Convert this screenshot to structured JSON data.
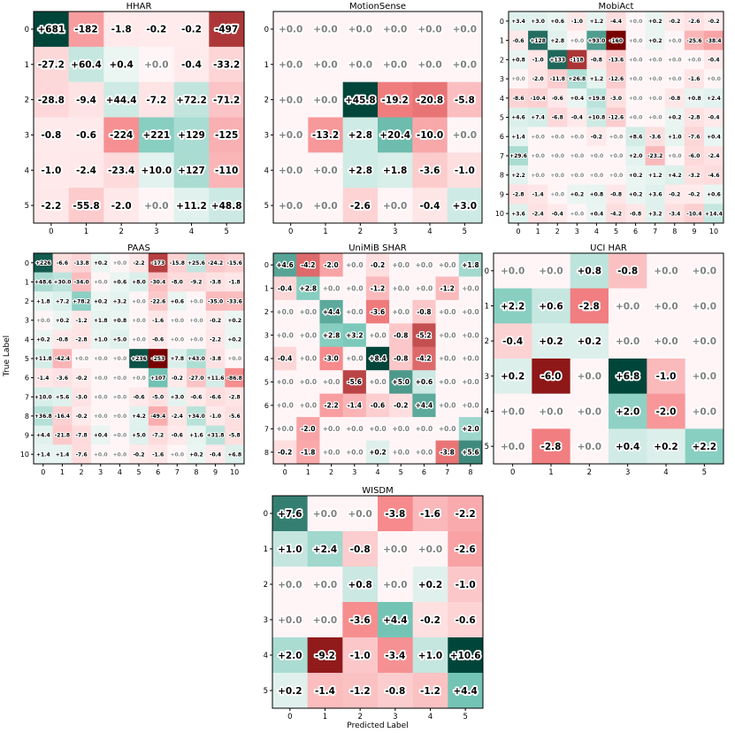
{
  "figure": {
    "xlabel": "Predicted Label",
    "ylabel": "True Label"
  },
  "chart_data": [
    {
      "type": "heatmap",
      "title": "HHAR",
      "xlabel": "",
      "ylabel": "",
      "categories": [
        "0",
        "1",
        "2",
        "3",
        "4",
        "5"
      ],
      "values": [
        [
          "+681",
          "-182",
          "-1.8",
          "-0.2",
          "-0.2",
          "-497"
        ],
        [
          "-27.2",
          "+60.4",
          "+0.4",
          "+0.0",
          "-0.4",
          "-33.2"
        ],
        [
          "-28.8",
          "-9.4",
          "+44.4",
          "-7.2",
          "+72.2",
          "-71.2"
        ],
        [
          "-0.8",
          "-0.6",
          "-224",
          "+221",
          "+129",
          "-125"
        ],
        [
          "-1.0",
          "-2.4",
          "-23.4",
          "+10.0",
          "+127",
          "-110"
        ],
        [
          "-2.2",
          "-55.8",
          "-2.0",
          "+0.0",
          "+11.2",
          "+48.8"
        ]
      ]
    },
    {
      "type": "heatmap",
      "title": "MotionSense",
      "xlabel": "",
      "ylabel": "",
      "categories": [
        "0",
        "1",
        "2",
        "3",
        "4",
        "5"
      ],
      "values": [
        [
          "+0.0",
          "+0.0",
          "+0.0",
          "+0.0",
          "+0.0",
          "+0.0"
        ],
        [
          "+0.0",
          "+0.0",
          "+0.0",
          "+0.0",
          "+0.0",
          "+0.0"
        ],
        [
          "+0.0",
          "+0.0",
          "+45.8",
          "-19.2",
          "-20.8",
          "-5.8"
        ],
        [
          "+0.0",
          "-13.2",
          "+2.8",
          "+20.4",
          "-10.0",
          "+0.0"
        ],
        [
          "+0.0",
          "+0.0",
          "+2.8",
          "+1.8",
          "-3.6",
          "-1.0"
        ],
        [
          "+0.0",
          "+0.0",
          "-2.6",
          "+0.0",
          "-0.4",
          "+3.0"
        ]
      ]
    },
    {
      "type": "heatmap",
      "title": "MobiAct",
      "xlabel": "",
      "ylabel": "",
      "categories": [
        "0",
        "1",
        "2",
        "3",
        "4",
        "5",
        "6",
        "7",
        "8",
        "9",
        "10"
      ],
      "values": [
        [
          "+3.4",
          "+3.0",
          "+0.6",
          "-1.0",
          "+1.2",
          "-4.4",
          "+0.0",
          "+0.2",
          "-0.2",
          "-2.6",
          "-0.2"
        ],
        [
          "-0.6",
          "+128",
          "+2.8",
          "+0.0",
          "+93.0",
          "-160",
          "+0.0",
          "+0.2",
          "+0.0",
          "-25.6",
          "-38.4"
        ],
        [
          "+0.8",
          "-1.0",
          "+133",
          "-118",
          "-0.8",
          "-13.6",
          "+0.0",
          "+0.0",
          "+0.0",
          "+0.0",
          "-0.4"
        ],
        [
          "+0.0",
          "-2.0",
          "-11.8",
          "+26.8",
          "+1.2",
          "-12.6",
          "+0.0",
          "+0.0",
          "+0.0",
          "-1.6",
          "+0.0"
        ],
        [
          "-8.6",
          "-10.4",
          "-0.6",
          "+0.4",
          "+19.8",
          "-3.0",
          "+0.0",
          "+0.0",
          "-0.8",
          "+0.8",
          "+2.4"
        ],
        [
          "+4.6",
          "+7.4",
          "-6.8",
          "-0.4",
          "+10.8",
          "-12.6",
          "+0.0",
          "+0.0",
          "+0.2",
          "-2.8",
          "-0.4"
        ],
        [
          "+1.4",
          "+0.0",
          "+0.0",
          "+0.0",
          "-0.2",
          "+0.0",
          "+8.6",
          "-3.6",
          "+1.0",
          "-7.6",
          "+0.4"
        ],
        [
          "+29.6",
          "+0.0",
          "+0.0",
          "+0.0",
          "+0.0",
          "+0.0",
          "+2.0",
          "-23.2",
          "+0.0",
          "-6.0",
          "-2.4"
        ],
        [
          "+2.2",
          "+0.0",
          "+0.0",
          "+0.0",
          "+0.0",
          "+0.0",
          "+0.2",
          "+1.2",
          "+4.2",
          "-3.2",
          "-4.6"
        ],
        [
          "-2.8",
          "-1.4",
          "+0.0",
          "+0.2",
          "+0.8",
          "-0.8",
          "+0.2",
          "+3.6",
          "-0.2",
          "-0.2",
          "+0.6"
        ],
        [
          "+3.6",
          "-2.4",
          "-0.4",
          "+0.0",
          "+0.4",
          "-4.2",
          "-0.8",
          "+3.2",
          "-3.4",
          "-10.4",
          "+14.4"
        ]
      ]
    },
    {
      "type": "heatmap",
      "title": "PAAS",
      "xlabel": "",
      "ylabel": "",
      "categories": [
        "0",
        "1",
        "2",
        "3",
        "4",
        "5",
        "6",
        "7",
        "8",
        "9",
        "10"
      ],
      "values": [
        [
          "+226",
          "-6.6",
          "-13.8",
          "+0.2",
          "+0.0",
          "-2.2",
          "-173",
          "-15.8",
          "+25.6",
          "-24.2",
          "-15.6"
        ],
        [
          "+48.6",
          "+30.0",
          "-34.0",
          "+0.0",
          "+0.6",
          "+8.0",
          "-30.4",
          "-8.0",
          "-9.2",
          "-3.8",
          "-1.8"
        ],
        [
          "+1.8",
          "+7.2",
          "+78.2",
          "+0.2",
          "+3.2",
          "+0.0",
          "-22.6",
          "+0.6",
          "+0.0",
          "-35.0",
          "-33.6"
        ],
        [
          "+0.0",
          "+0.2",
          "-1.2",
          "+1.8",
          "+0.8",
          "+0.0",
          "-1.6",
          "+0.0",
          "+0.0",
          "-0.2",
          "+0.2"
        ],
        [
          "+0.2",
          "-0.8",
          "-2.8",
          "+1.0",
          "+5.0",
          "+0.0",
          "-0.6",
          "+0.0",
          "+0.0",
          "-2.2",
          "+0.2"
        ],
        [
          "+11.8",
          "-42.4",
          "+0.0",
          "+0.0",
          "+0.0",
          "+236",
          "-253",
          "+7.8",
          "+43.0",
          "-3.8",
          "+0.0"
        ],
        [
          "-1.4",
          "-3.6",
          "-0.2",
          "+0.0",
          "+0.0",
          "+0.0",
          "+107",
          "-0.2",
          "-27.0",
          "+11.6",
          "-86.8"
        ],
        [
          "+10.0",
          "+5.6",
          "-3.0",
          "+0.0",
          "+0.0",
          "-0.6",
          "-5.0",
          "+3.0",
          "-0.6",
          "-6.6",
          "-2.8"
        ],
        [
          "+36.8",
          "-16.4",
          "-0.2",
          "+0.0",
          "+0.0",
          "+4.2",
          "-49.4",
          "-2.4",
          "+34.0",
          "-1.0",
          "-5.6"
        ],
        [
          "+4.4",
          "-21.8",
          "-7.8",
          "+0.4",
          "+0.0",
          "+5.0",
          "-7.2",
          "-0.6",
          "+1.6",
          "+31.8",
          "-5.8"
        ],
        [
          "+1.4",
          "+1.4",
          "-7.6",
          "+0.0",
          "+0.0",
          "-0.2",
          "-1.6",
          "+0.0",
          "+0.2",
          "-0.4",
          "+6.8"
        ]
      ]
    },
    {
      "type": "heatmap",
      "title": "UniMiB SHAR",
      "xlabel": "",
      "ylabel": "",
      "categories": [
        "0",
        "1",
        "2",
        "3",
        "4",
        "5",
        "6",
        "7",
        "8"
      ],
      "values": [
        [
          "+4.6",
          "-4.2",
          "-2.0",
          "+0.0",
          "-0.2",
          "+0.0",
          "+0.0",
          "+0.0",
          "+1.8"
        ],
        [
          "-0.4",
          "+2.8",
          "+0.0",
          "+0.0",
          "-1.2",
          "+0.0",
          "+0.0",
          "-1.2",
          "+0.0"
        ],
        [
          "+0.0",
          "+0.0",
          "+4.4",
          "+0.0",
          "-3.6",
          "+0.0",
          "-0.8",
          "+0.0",
          "+0.0"
        ],
        [
          "+0.0",
          "+0.0",
          "+2.8",
          "+3.2",
          "+0.0",
          "-0.8",
          "-5.2",
          "+0.0",
          "+0.0"
        ],
        [
          "-0.4",
          "+0.0",
          "-3.0",
          "+0.0",
          "+8.4",
          "-0.8",
          "-4.2",
          "+0.0",
          "+0.0"
        ],
        [
          "+0.0",
          "+0.0",
          "+0.0",
          "-5.6",
          "+0.0",
          "+5.0",
          "+0.6",
          "+0.0",
          "+0.0"
        ],
        [
          "+0.0",
          "+0.0",
          "-2.2",
          "-1.4",
          "-0.6",
          "-0.2",
          "+4.4",
          "+0.0",
          "+0.0"
        ],
        [
          "+0.0",
          "-2.0",
          "+0.0",
          "+0.0",
          "+0.0",
          "+0.0",
          "+0.0",
          "+0.0",
          "+2.0"
        ],
        [
          "-0.2",
          "-1.8",
          "+0.0",
          "+0.0",
          "+0.2",
          "+0.0",
          "+0.0",
          "-3.8",
          "+5.6"
        ]
      ]
    },
    {
      "type": "heatmap",
      "title": "UCI HAR",
      "xlabel": "",
      "ylabel": "",
      "categories": [
        "0",
        "1",
        "2",
        "3",
        "4",
        "5"
      ],
      "values": [
        [
          "+0.0",
          "+0.0",
          "+0.8",
          "-0.8",
          "+0.0",
          "+0.0"
        ],
        [
          "+2.2",
          "+0.6",
          "-2.8",
          "+0.0",
          "+0.0",
          "+0.0"
        ],
        [
          "-0.4",
          "+0.2",
          "+0.2",
          "+0.0",
          "+0.0",
          "+0.0"
        ],
        [
          "+0.2",
          "-6.0",
          "+0.0",
          "+6.8",
          "-1.0",
          "+0.0"
        ],
        [
          "+0.0",
          "+0.0",
          "+0.0",
          "+2.0",
          "-2.0",
          "+0.0"
        ],
        [
          "+0.0",
          "-2.8",
          "+0.0",
          "+0.4",
          "+0.2",
          "+2.2"
        ]
      ]
    },
    {
      "type": "heatmap",
      "title": "WISDM",
      "xlabel": "Predicted Label",
      "ylabel": "",
      "categories": [
        "0",
        "1",
        "2",
        "3",
        "4",
        "5"
      ],
      "values": [
        [
          "+7.6",
          "+0.0",
          "+0.0",
          "-3.8",
          "-1.6",
          "-2.2"
        ],
        [
          "+1.0",
          "+2.4",
          "-0.8",
          "+0.0",
          "+0.0",
          "-2.6"
        ],
        [
          "+0.0",
          "+0.0",
          "+0.8",
          "+0.0",
          "+0.2",
          "-1.0"
        ],
        [
          "+0.0",
          "+0.0",
          "-3.6",
          "+4.4",
          "-0.2",
          "-0.6"
        ],
        [
          "+2.0",
          "-9.2",
          "-1.0",
          "-3.4",
          "+1.0",
          "+10.6"
        ],
        [
          "+0.2",
          "-1.4",
          "-1.2",
          "-0.8",
          "-1.2",
          "+4.4"
        ]
      ]
    }
  ]
}
